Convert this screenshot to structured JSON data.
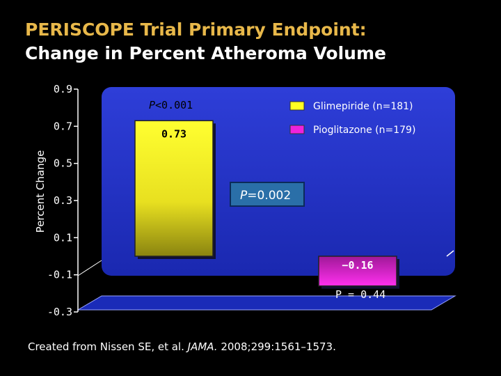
{
  "slide": {
    "title": "PERISCOPE Trial Primary Endpoint:",
    "subtitle": "Change in Percent Atheroma Volume",
    "source_prefix": "Created from Nissen SE, et al. ",
    "source_journal": "JAMA.",
    "source_suffix": " 2008;299:1561–1573."
  },
  "colors": {
    "background": "#000000",
    "title": "#e8b84a",
    "plot_wall": "#2233cc",
    "floor": "#1a2bb8",
    "glimepiride": "#ffff22",
    "pioglitazone": "#ee22dd",
    "p_box": "#2a6fa8"
  },
  "chart_data": {
    "type": "bar",
    "ylabel": "Percent Change",
    "ylim": [
      -0.3,
      0.9
    ],
    "yticks": [
      "0.9",
      "0.7",
      "0.5",
      "0.3",
      "0.1",
      "-0.1",
      "-0.3"
    ],
    "series": [
      {
        "name": "Glimepiride (n=181)",
        "value": 0.73,
        "label": "0.73"
      },
      {
        "name": "Pioglitazone (n=179)",
        "value": -0.16,
        "label": "−0.16"
      }
    ],
    "annotations": {
      "p_glimepiride": "<0.001",
      "p_between": "=0.002",
      "p_pioglitazone": "P = 0.44"
    },
    "legend_position": "top-right"
  }
}
